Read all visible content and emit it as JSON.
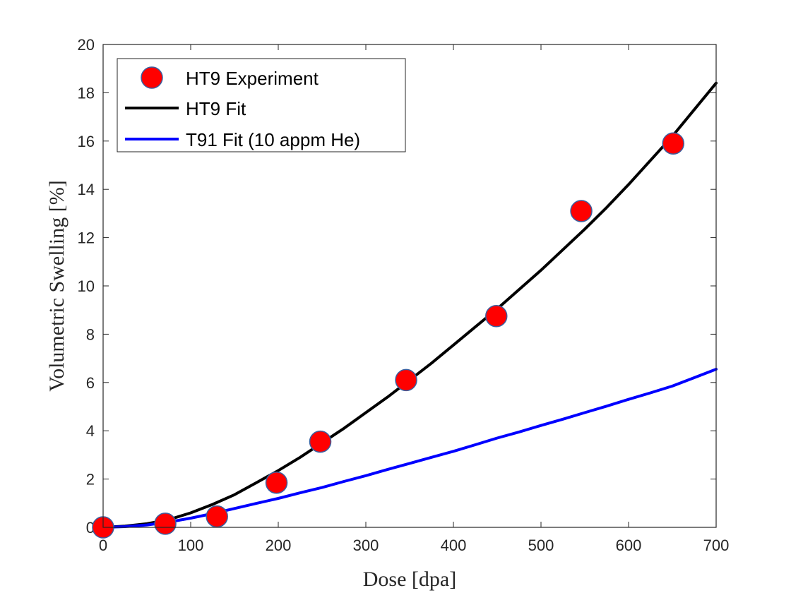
{
  "chart_data": {
    "type": "line",
    "title": "",
    "xlabel": "Dose [dpa]",
    "ylabel": "Volumetric Swelling [%]",
    "xlim": [
      0,
      700
    ],
    "ylim": [
      0,
      20
    ],
    "xticks": [
      0,
      100,
      200,
      300,
      400,
      500,
      600,
      700
    ],
    "yticks": [
      0,
      2,
      4,
      6,
      8,
      10,
      12,
      14,
      16,
      18,
      20
    ],
    "grid": false,
    "legend_placement": "top-left",
    "series": [
      {
        "name": "HT9 Experiment",
        "kind": "scatter",
        "color": "#ff0000",
        "edge_color": "#3a5f9f",
        "x": [
          0,
          71,
          130,
          198,
          248,
          346,
          449,
          546,
          651
        ],
        "y": [
          0.0,
          0.15,
          0.45,
          1.85,
          3.55,
          6.1,
          8.75,
          13.1,
          15.9
        ]
      },
      {
        "name": "HT9 Fit",
        "kind": "line",
        "color": "#000000",
        "x": [
          0,
          25,
          50,
          75,
          100,
          125,
          150,
          175,
          200,
          225,
          250,
          275,
          300,
          325,
          350,
          375,
          400,
          425,
          450,
          475,
          500,
          525,
          550,
          575,
          600,
          625,
          650,
          675,
          700
        ],
        "y": [
          0.0,
          0.05,
          0.15,
          0.32,
          0.6,
          0.95,
          1.35,
          1.85,
          2.35,
          2.9,
          3.5,
          4.1,
          4.75,
          5.4,
          6.1,
          6.8,
          7.55,
          8.3,
          9.05,
          9.85,
          10.65,
          11.5,
          12.35,
          13.25,
          14.2,
          15.2,
          16.2,
          17.3,
          18.4
        ]
      },
      {
        "name": "T91 Fit (10 appm He)",
        "kind": "line",
        "color": "#0000ff",
        "x": [
          0,
          25,
          50,
          75,
          100,
          125,
          150,
          175,
          200,
          225,
          250,
          275,
          300,
          325,
          350,
          375,
          400,
          425,
          450,
          475,
          500,
          525,
          550,
          575,
          600,
          625,
          650,
          675,
          700
        ],
        "y": [
          0.0,
          0.03,
          0.1,
          0.22,
          0.38,
          0.57,
          0.78,
          0.99,
          1.2,
          1.43,
          1.65,
          1.9,
          2.14,
          2.4,
          2.65,
          2.9,
          3.15,
          3.42,
          3.7,
          3.95,
          4.22,
          4.48,
          4.75,
          5.02,
          5.3,
          5.57,
          5.85,
          6.2,
          6.55
        ]
      }
    ]
  }
}
